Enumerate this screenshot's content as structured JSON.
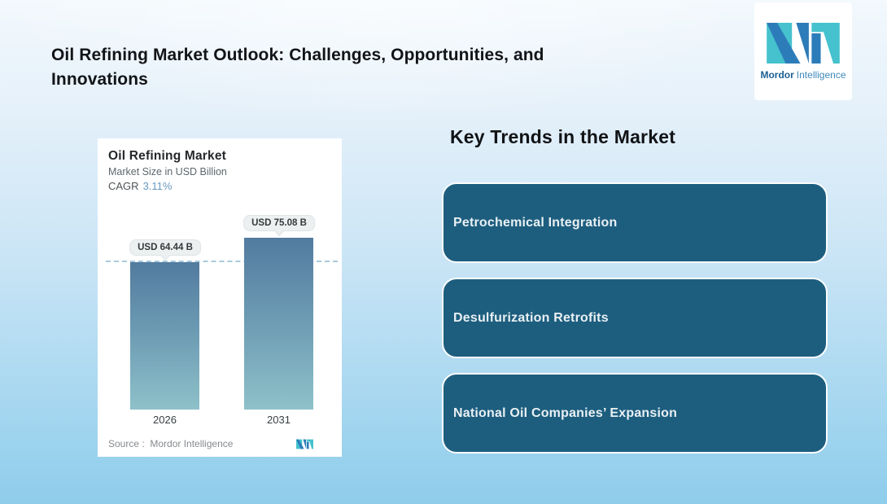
{
  "page_title": "Oil Refining Market Outlook: Challenges, Opportunities, and Innovations",
  "brand": {
    "name_bold": "Mordor",
    "name_rest": "Intelligence",
    "colors": {
      "teal": "#45c2cd",
      "blue": "#2d7cba"
    }
  },
  "key_trends": {
    "heading": "Key Trends in the Market",
    "cards": [
      {
        "label": "Petrochemical Integration"
      },
      {
        "label": "Desulfurization Retrofits"
      },
      {
        "label": "National Oil Companies’ Expansion"
      }
    ]
  },
  "chart_data": {
    "type": "bar",
    "title": "Oil Refining Market",
    "subtitle": "Market Size in USD Billion",
    "cagr_label": "CAGR",
    "cagr_value": "3.11%",
    "categories": [
      "2026",
      "2031"
    ],
    "values": [
      64.44,
      75.08
    ],
    "value_labels": [
      "USD 64.44 B",
      "USD 75.08 B"
    ],
    "unit": "USD Billion",
    "ylim": [
      0,
      118
    ],
    "grid": "off",
    "legend_position": "none",
    "reference_line_value": 64.44,
    "source_label": "Source :  Mordor Intelligence",
    "colors": {
      "bar_top": "#527b9f",
      "bar_bottom": "#8ec1c9",
      "reference_line": "#a9c9da",
      "cagr_value": "#6899bf"
    }
  }
}
